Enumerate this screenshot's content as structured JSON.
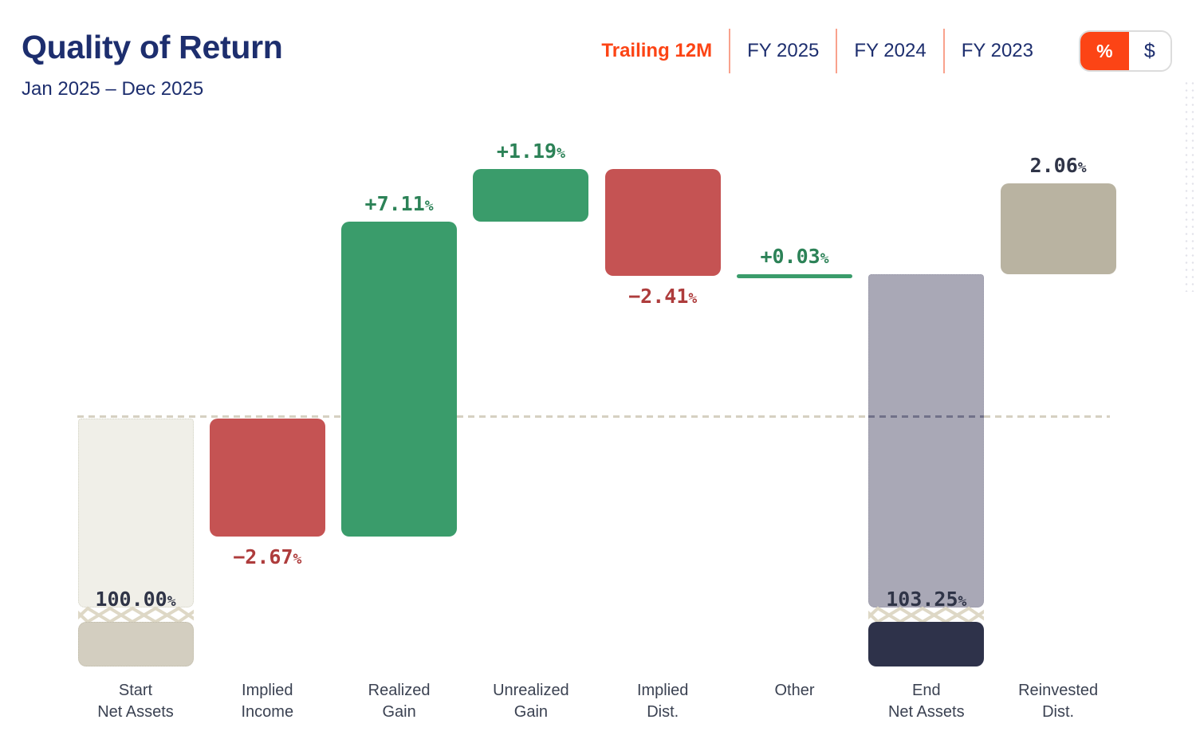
{
  "header": {
    "title": "Quality of Return",
    "date_range": "Jan 2025 – Dec 2025"
  },
  "tabs": [
    {
      "label": "Trailing 12M",
      "active": true
    },
    {
      "label": "FY 2025",
      "active": false
    },
    {
      "label": "FY 2024",
      "active": false
    },
    {
      "label": "FY 2023",
      "active": false
    }
  ],
  "unit_toggle": {
    "options": [
      {
        "label": "%",
        "active": true
      },
      {
        "label": "$",
        "active": false
      }
    ]
  },
  "colors": {
    "accent_orange": "#fc4415",
    "navy_text": "#1d2e6e",
    "green_bar": "#3a9c6b",
    "green_text": "#2c8257",
    "red_bar": "#c55353",
    "red_text": "#ae3c3c",
    "cream_bar": "#f0efe8",
    "tan_block": "#d3cec0",
    "tan_bar": "#b9b3a1",
    "gray_bar": "#a9a8b6",
    "navy_block": "#2e324a",
    "dashed_line": "#d6d1c2",
    "dark_value_text": "#2f3447"
  },
  "chart_data": {
    "type": "waterfall",
    "unit": "%",
    "title": "Quality of Return",
    "period": "Jan 2025 – Dec 2025",
    "baseline_pct": 100,
    "reference_line": {
      "value_pct": 100,
      "style": "dashed"
    },
    "categories": [
      "Start Net Assets",
      "Implied Income",
      "Realized Gain",
      "Unrealized Gain",
      "Implied Dist.",
      "Other",
      "End Net Assets",
      "Reinvested Dist."
    ],
    "bars": [
      {
        "category": "Start Net Assets",
        "label_lines": [
          "Start",
          "Net Assets"
        ],
        "kind": "total",
        "value": 100.0,
        "display": "100.00%",
        "from_pct": 100,
        "color_role": "cream",
        "truncated": true
      },
      {
        "category": "Implied Income",
        "label_lines": [
          "Implied",
          "Income"
        ],
        "kind": "decrease",
        "value": -2.67,
        "display": "−2.67%",
        "from_pct": 100,
        "to_pct": 97.33,
        "color_role": "red",
        "label_position": "below"
      },
      {
        "category": "Realized Gain",
        "label_lines": [
          "Realized",
          "Gain"
        ],
        "kind": "increase",
        "value": 7.11,
        "display": "+7.11%",
        "from_pct": 97.33,
        "to_pct": 104.44,
        "color_role": "green",
        "label_position": "above"
      },
      {
        "category": "Unrealized Gain",
        "label_lines": [
          "Unrealized",
          "Gain"
        ],
        "kind": "increase",
        "value": 1.19,
        "display": "+1.19%",
        "from_pct": 104.44,
        "to_pct": 105.63,
        "color_role": "green",
        "label_position": "above"
      },
      {
        "category": "Implied Dist.",
        "label_lines": [
          "Implied",
          "Dist."
        ],
        "kind": "decrease",
        "value": -2.41,
        "display": "−2.41%",
        "from_pct": 105.63,
        "to_pct": 103.22,
        "color_role": "red",
        "label_position": "below"
      },
      {
        "category": "Other",
        "label_lines": [
          "Other"
        ],
        "kind": "increase",
        "value": 0.03,
        "display": "+0.03%",
        "from_pct": 103.22,
        "to_pct": 103.25,
        "color_role": "green",
        "label_position": "above"
      },
      {
        "category": "End Net Assets",
        "label_lines": [
          "End",
          "Net Assets"
        ],
        "kind": "total",
        "value": 103.25,
        "display": "103.25%",
        "from_pct": 103.25,
        "color_role": "gray",
        "truncated": true
      },
      {
        "category": "Reinvested Dist.",
        "label_lines": [
          "Reinvested",
          "Dist."
        ],
        "kind": "memo",
        "value": 2.06,
        "display": "2.06%",
        "from_pct": 103.25,
        "to_pct": 105.31,
        "color_role": "tan",
        "label_position": "above",
        "label_color": "dark"
      }
    ]
  }
}
